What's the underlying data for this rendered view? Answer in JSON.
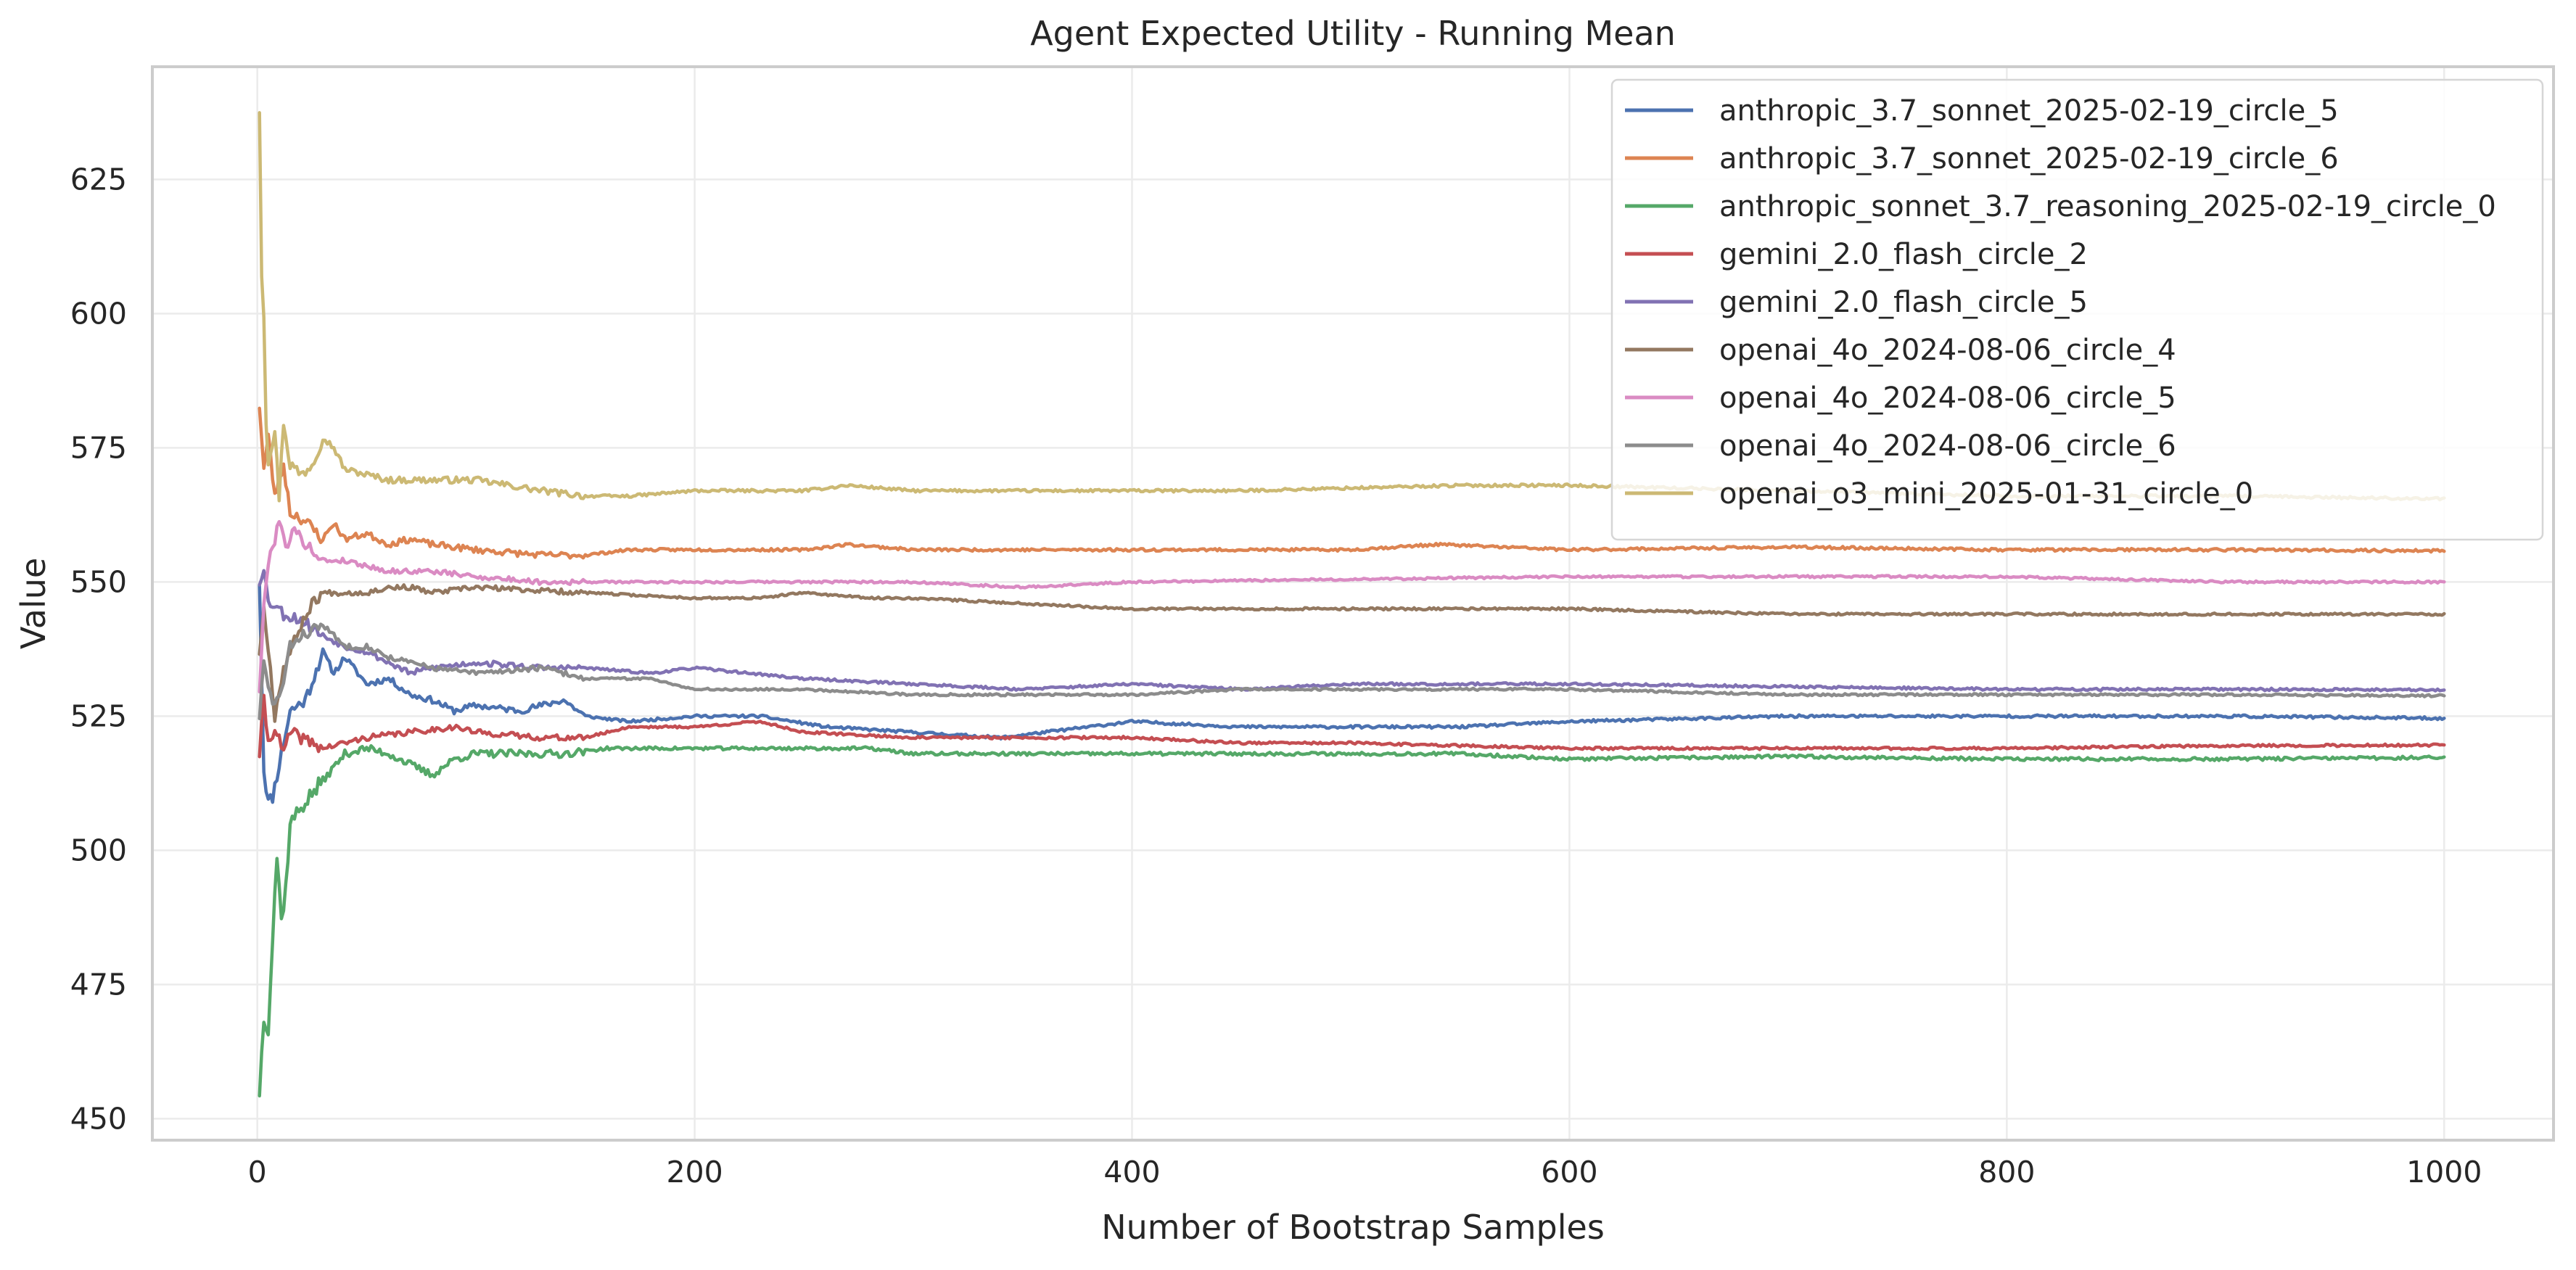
{
  "chart_data": {
    "type": "line",
    "title": "Agent Expected Utility - Running Mean",
    "xlabel": "Number of Bootstrap Samples",
    "ylabel": "Value",
    "xlim": [
      -48,
      1050
    ],
    "ylim": [
      446,
      646
    ],
    "xticks": [
      0,
      200,
      400,
      600,
      800,
      1000
    ],
    "yticks": [
      450,
      475,
      500,
      525,
      550,
      575,
      600,
      625
    ],
    "grid": true,
    "legend_position": "top-right",
    "series": [
      {
        "name": "anthropic_3.7_sonnet_2025-02-19_circle_5",
        "color": "#4c72b0",
        "start": 550,
        "end": 524.6,
        "noise": 1.0,
        "seed": 11,
        "points": [
          [
            1,
            550
          ],
          [
            3,
            515
          ],
          [
            5,
            509
          ],
          [
            7,
            510
          ],
          [
            10,
            516
          ],
          [
            15,
            526
          ],
          [
            22,
            528
          ],
          [
            30,
            537
          ],
          [
            35,
            533
          ],
          [
            40,
            536
          ],
          [
            50,
            531
          ],
          [
            60,
            532
          ],
          [
            70,
            529
          ],
          [
            80,
            528
          ],
          [
            90,
            526
          ],
          [
            100,
            527
          ],
          [
            120,
            526
          ],
          [
            140,
            528
          ],
          [
            150,
            525
          ],
          [
            170,
            524
          ],
          [
            200,
            525
          ],
          [
            230,
            525
          ],
          [
            260,
            523
          ],
          [
            300,
            522
          ],
          [
            340,
            521
          ],
          [
            360,
            522
          ],
          [
            400,
            524
          ],
          [
            450,
            523
          ],
          [
            500,
            523
          ],
          [
            550,
            523
          ],
          [
            600,
            524
          ],
          [
            700,
            525
          ],
          [
            800,
            525
          ],
          [
            900,
            525
          ],
          [
            1000,
            524.6
          ]
        ]
      },
      {
        "name": "anthropic_3.7_sonnet_2025-02-19_circle_6",
        "color": "#dd8452",
        "start": 583,
        "end": 555.8,
        "noise": 1.0,
        "seed": 23,
        "points": [
          [
            1,
            583
          ],
          [
            3,
            571
          ],
          [
            5,
            577
          ],
          [
            8,
            566
          ],
          [
            12,
            572
          ],
          [
            15,
            563
          ],
          [
            20,
            562
          ],
          [
            30,
            558
          ],
          [
            35,
            561
          ],
          [
            40,
            558
          ],
          [
            50,
            559
          ],
          [
            60,
            557
          ],
          [
            70,
            558
          ],
          [
            80,
            557
          ],
          [
            100,
            556
          ],
          [
            130,
            555
          ],
          [
            150,
            555
          ],
          [
            170,
            556
          ],
          [
            200,
            556
          ],
          [
            250,
            556
          ],
          [
            270,
            557
          ],
          [
            300,
            556
          ],
          [
            400,
            556
          ],
          [
            500,
            556
          ],
          [
            540,
            557
          ],
          [
            600,
            556
          ],
          [
            700,
            556.5
          ],
          [
            800,
            556
          ],
          [
            900,
            556
          ],
          [
            1000,
            555.8
          ]
        ]
      },
      {
        "name": "anthropic_sonnet_3.7_reasoning_2025-02-19_circle_0",
        "color": "#55a868",
        "start": 455,
        "end": 517.3,
        "noise": 1.2,
        "seed": 37,
        "points": [
          [
            1,
            455
          ],
          [
            3,
            469
          ],
          [
            5,
            467
          ],
          [
            8,
            492
          ],
          [
            9,
            499
          ],
          [
            11,
            487
          ],
          [
            13,
            493
          ],
          [
            15,
            505
          ],
          [
            20,
            508
          ],
          [
            30,
            513
          ],
          [
            40,
            518
          ],
          [
            50,
            519
          ],
          [
            60,
            518
          ],
          [
            70,
            516
          ],
          [
            80,
            514
          ],
          [
            90,
            517
          ],
          [
            100,
            518
          ],
          [
            120,
            518
          ],
          [
            140,
            518
          ],
          [
            160,
            519
          ],
          [
            200,
            519
          ],
          [
            250,
            519
          ],
          [
            280,
            519
          ],
          [
            300,
            518
          ],
          [
            400,
            518
          ],
          [
            450,
            518
          ],
          [
            500,
            518
          ],
          [
            550,
            518
          ],
          [
            600,
            517
          ],
          [
            700,
            517.5
          ],
          [
            800,
            517
          ],
          [
            900,
            517
          ],
          [
            1000,
            517.3
          ]
        ]
      },
      {
        "name": "gemini_2.0_flash_circle_2",
        "color": "#c44e52",
        "start": 518,
        "end": 519.6,
        "noise": 0.9,
        "seed": 41,
        "points": [
          [
            1,
            518
          ],
          [
            3,
            528
          ],
          [
            5,
            520
          ],
          [
            8,
            523
          ],
          [
            12,
            518
          ],
          [
            15,
            522
          ],
          [
            20,
            521
          ],
          [
            30,
            519
          ],
          [
            40,
            520
          ],
          [
            50,
            521
          ],
          [
            70,
            522
          ],
          [
            90,
            523
          ],
          [
            100,
            522
          ],
          [
            130,
            521
          ],
          [
            150,
            521
          ],
          [
            170,
            523
          ],
          [
            200,
            523
          ],
          [
            230,
            524
          ],
          [
            250,
            522
          ],
          [
            300,
            521
          ],
          [
            350,
            521
          ],
          [
            400,
            521
          ],
          [
            450,
            520
          ],
          [
            500,
            520
          ],
          [
            600,
            519
          ],
          [
            700,
            519
          ],
          [
            800,
            519
          ],
          [
            900,
            519.5
          ],
          [
            1000,
            519.6
          ]
        ]
      },
      {
        "name": "gemini_2.0_flash_circle_5",
        "color": "#8172b3",
        "start": 550,
        "end": 529.9,
        "noise": 0.9,
        "seed": 53,
        "points": [
          [
            1,
            550
          ],
          [
            3,
            553
          ],
          [
            5,
            546
          ],
          [
            8,
            546
          ],
          [
            12,
            544
          ],
          [
            20,
            543
          ],
          [
            30,
            540
          ],
          [
            40,
            538
          ],
          [
            50,
            537
          ],
          [
            60,
            535
          ],
          [
            70,
            533
          ],
          [
            80,
            534
          ],
          [
            100,
            535
          ],
          [
            130,
            534
          ],
          [
            150,
            534
          ],
          [
            180,
            533
          ],
          [
            200,
            534
          ],
          [
            250,
            532
          ],
          [
            300,
            531
          ],
          [
            350,
            530
          ],
          [
            400,
            531
          ],
          [
            450,
            530
          ],
          [
            500,
            531
          ],
          [
            550,
            531
          ],
          [
            600,
            531
          ],
          [
            700,
            530.5
          ],
          [
            800,
            530
          ],
          [
            900,
            530
          ],
          [
            1000,
            529.9
          ]
        ]
      },
      {
        "name": "openai_4o_2024-08-06_circle_4",
        "color": "#937860",
        "start": 537,
        "end": 544.0,
        "noise": 0.8,
        "seed": 67,
        "points": [
          [
            1,
            537
          ],
          [
            3,
            545
          ],
          [
            5,
            538
          ],
          [
            8,
            525
          ],
          [
            12,
            534
          ],
          [
            15,
            537
          ],
          [
            20,
            542
          ],
          [
            25,
            546
          ],
          [
            30,
            548
          ],
          [
            40,
            548
          ],
          [
            50,
            548
          ],
          [
            60,
            549
          ],
          [
            70,
            549
          ],
          [
            80,
            548
          ],
          [
            100,
            549
          ],
          [
            150,
            548
          ],
          [
            200,
            547
          ],
          [
            230,
            547
          ],
          [
            250,
            548
          ],
          [
            280,
            547
          ],
          [
            300,
            547
          ],
          [
            350,
            546
          ],
          [
            400,
            545
          ],
          [
            500,
            545
          ],
          [
            600,
            545
          ],
          [
            700,
            544
          ],
          [
            800,
            544
          ],
          [
            900,
            544
          ],
          [
            1000,
            544.0
          ]
        ]
      },
      {
        "name": "openai_4o_2024-08-06_circle_5",
        "color": "#da8bc3",
        "start": 530,
        "end": 550.0,
        "noise": 0.8,
        "seed": 79,
        "points": [
          [
            1,
            530
          ],
          [
            3,
            545
          ],
          [
            5,
            554
          ],
          [
            8,
            558
          ],
          [
            10,
            562
          ],
          [
            13,
            556
          ],
          [
            16,
            560
          ],
          [
            20,
            558
          ],
          [
            30,
            554
          ],
          [
            40,
            554
          ],
          [
            50,
            553
          ],
          [
            60,
            552
          ],
          [
            80,
            552
          ],
          [
            100,
            551
          ],
          [
            130,
            550
          ],
          [
            150,
            550
          ],
          [
            200,
            550
          ],
          [
            250,
            550
          ],
          [
            300,
            550
          ],
          [
            350,
            549
          ],
          [
            400,
            550
          ],
          [
            500,
            550.5
          ],
          [
            600,
            551
          ],
          [
            700,
            551
          ],
          [
            800,
            551
          ],
          [
            900,
            550
          ],
          [
            1000,
            550.0
          ]
        ]
      },
      {
        "name": "openai_4o_2024-08-06_circle_6",
        "color": "#8c8c8c",
        "start": 525,
        "end": 528.8,
        "noise": 0.8,
        "seed": 83,
        "points": [
          [
            1,
            525
          ],
          [
            3,
            535
          ],
          [
            5,
            530
          ],
          [
            8,
            527
          ],
          [
            12,
            531
          ],
          [
            15,
            538
          ],
          [
            20,
            540
          ],
          [
            30,
            542
          ],
          [
            40,
            538
          ],
          [
            50,
            538
          ],
          [
            60,
            536
          ],
          [
            70,
            535
          ],
          [
            80,
            534
          ],
          [
            100,
            533
          ],
          [
            130,
            534
          ],
          [
            150,
            532
          ],
          [
            180,
            532
          ],
          [
            200,
            530
          ],
          [
            250,
            530
          ],
          [
            300,
            529
          ],
          [
            350,
            529
          ],
          [
            400,
            529
          ],
          [
            450,
            530
          ],
          [
            500,
            530
          ],
          [
            600,
            530
          ],
          [
            700,
            529
          ],
          [
            800,
            529
          ],
          [
            900,
            529
          ],
          [
            1000,
            528.8
          ]
        ]
      },
      {
        "name": "openai_o3_mini_2025-01-31_circle_0",
        "color": "#ccb974",
        "start": 638,
        "end": 565.5,
        "noise": 1.0,
        "seed": 97,
        "points": [
          [
            1,
            638
          ],
          [
            2,
            608
          ],
          [
            3,
            600
          ],
          [
            4,
            580
          ],
          [
            5,
            573
          ],
          [
            8,
            578
          ],
          [
            10,
            566
          ],
          [
            12,
            580
          ],
          [
            15,
            572
          ],
          [
            20,
            570
          ],
          [
            25,
            572
          ],
          [
            30,
            577
          ],
          [
            35,
            575
          ],
          [
            40,
            571
          ],
          [
            50,
            570
          ],
          [
            60,
            569
          ],
          [
            70,
            569
          ],
          [
            80,
            569
          ],
          [
            100,
            569
          ],
          [
            130,
            567
          ],
          [
            150,
            566
          ],
          [
            170,
            566
          ],
          [
            200,
            567
          ],
          [
            250,
            567
          ],
          [
            270,
            568
          ],
          [
            300,
            567
          ],
          [
            350,
            567
          ],
          [
            400,
            567
          ],
          [
            450,
            567
          ],
          [
            500,
            567.5
          ],
          [
            550,
            568
          ],
          [
            600,
            568
          ],
          [
            700,
            567
          ],
          [
            800,
            566
          ],
          [
            900,
            566
          ],
          [
            1000,
            565.5
          ]
        ]
      }
    ]
  }
}
